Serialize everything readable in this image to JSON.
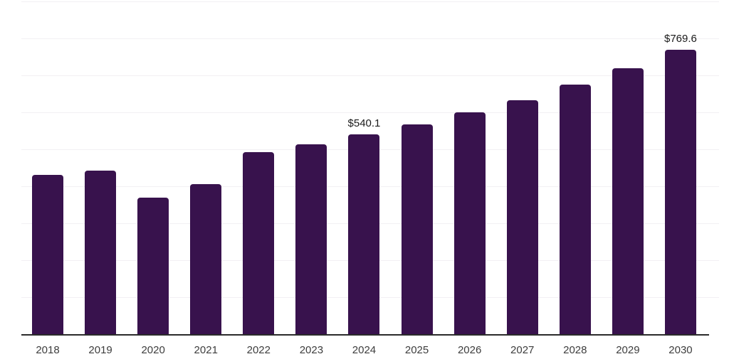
{
  "chart_data": {
    "type": "bar",
    "title": "",
    "xlabel": "",
    "ylabel": "",
    "categories": [
      "2018",
      "2019",
      "2020",
      "2021",
      "2022",
      "2023",
      "2024",
      "2025",
      "2026",
      "2027",
      "2028",
      "2029",
      "2030"
    ],
    "values": [
      431.4,
      442.8,
      370.0,
      406.4,
      492.7,
      513.8,
      540.1,
      567.4,
      600.0,
      632.6,
      674.8,
      718.9,
      769.6
    ],
    "data_labels": [
      "",
      "",
      "",
      "",
      "",
      "",
      "$540.1",
      "",
      "",
      "",
      "",
      "",
      "$769.6"
    ],
    "currency_prefix": "$",
    "ylim": [
      0,
      900
    ],
    "gridline_step": 100,
    "grid": true,
    "legend_position": "none",
    "y_axis_tick_labels_visible": false
  },
  "colors": {
    "bar": "#38124d",
    "gridline": "#f2f0f3",
    "axis": "#2b2b2b",
    "data_label_text": "#1a1a1a",
    "tick_label_text": "#3d3d3d",
    "background": "#ffffff"
  }
}
